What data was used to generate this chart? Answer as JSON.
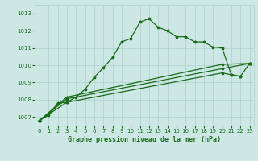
{
  "background_color": "#cde8e4",
  "grid_color": "#aed0cc",
  "line_color": "#1a6b1a",
  "title": "Graphe pression niveau de la mer (hPa)",
  "xlim": [
    -0.5,
    23.5
  ],
  "ylim": [
    1006.5,
    1013.5
  ],
  "yticks": [
    1007,
    1008,
    1009,
    1010,
    1011,
    1012,
    1013
  ],
  "xticks": [
    0,
    1,
    2,
    3,
    4,
    5,
    6,
    7,
    8,
    9,
    10,
    11,
    12,
    13,
    14,
    15,
    16,
    17,
    18,
    19,
    20,
    21,
    22,
    23
  ],
  "line1_x": [
    0,
    1,
    2,
    3,
    4,
    5,
    6,
    7,
    8,
    9,
    10,
    11,
    12,
    13,
    14,
    15,
    16,
    17,
    18,
    19,
    20,
    21,
    22
  ],
  "line1_y": [
    1006.8,
    1007.1,
    1007.8,
    1007.85,
    1008.15,
    1008.6,
    1009.3,
    1009.85,
    1010.45,
    1011.35,
    1011.55,
    1012.5,
    1012.7,
    1012.2,
    1012.0,
    1011.65,
    1011.65,
    1011.35,
    1011.35,
    1011.05,
    1011.0,
    1009.45,
    1009.35
  ],
  "line2_x": [
    0,
    3,
    20,
    21,
    22,
    23
  ],
  "line2_y": [
    1006.8,
    1007.85,
    1009.55,
    1009.45,
    1009.35,
    1010.1
  ],
  "line3_x": [
    0,
    3,
    20,
    23
  ],
  "line3_y": [
    1006.8,
    1008.05,
    1009.8,
    1010.1
  ],
  "line4_x": [
    0,
    3,
    20,
    23
  ],
  "line4_y": [
    1006.8,
    1008.15,
    1010.05,
    1010.1
  ]
}
